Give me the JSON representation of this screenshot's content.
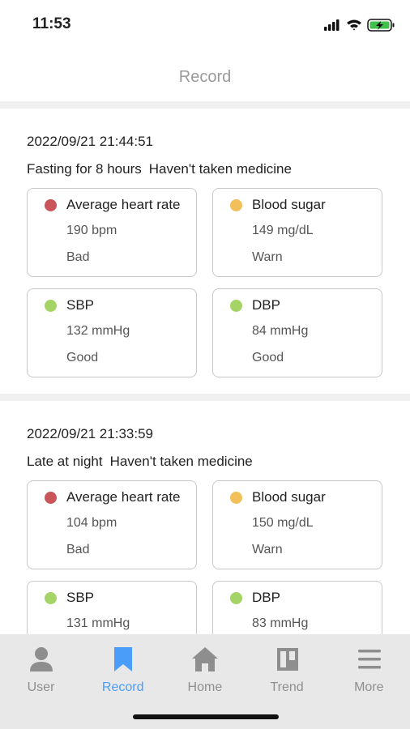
{
  "status_bar": {
    "time": "11:53"
  },
  "header": {
    "title": "Record"
  },
  "records": [
    {
      "datetime": "2022/09/21 21:44:51",
      "condition": "Fasting for 8 hours",
      "medicine": "Haven't taken medicine",
      "cards": [
        {
          "name": "Average heart rate",
          "value": "190 bpm",
          "status": "Bad",
          "color": "#c9545a"
        },
        {
          "name": "Blood sugar",
          "value": "149 mg/dL",
          "status": "Warn",
          "color": "#f2c05a"
        },
        {
          "name": "SBP",
          "value": "132 mmHg",
          "status": "Good",
          "color": "#a3d465"
        },
        {
          "name": "DBP",
          "value": "84 mmHg",
          "status": "Good",
          "color": "#a3d465"
        }
      ]
    },
    {
      "datetime": "2022/09/21 21:33:59",
      "condition": "Late at night",
      "medicine": "Haven't taken medicine",
      "cards": [
        {
          "name": "Average heart rate",
          "value": "104 bpm",
          "status": "Bad",
          "color": "#c9545a"
        },
        {
          "name": "Blood sugar",
          "value": "150 mg/dL",
          "status": "Warn",
          "color": "#f2c05a"
        },
        {
          "name": "SBP",
          "value": "131 mmHg",
          "color": "#a3d465"
        },
        {
          "name": "DBP",
          "value": "83 mmHg",
          "color": "#a3d465"
        }
      ]
    }
  ],
  "tabs": [
    {
      "label": "User"
    },
    {
      "label": "Record",
      "active": true
    },
    {
      "label": "Home"
    },
    {
      "label": "Trend"
    },
    {
      "label": "More"
    }
  ]
}
